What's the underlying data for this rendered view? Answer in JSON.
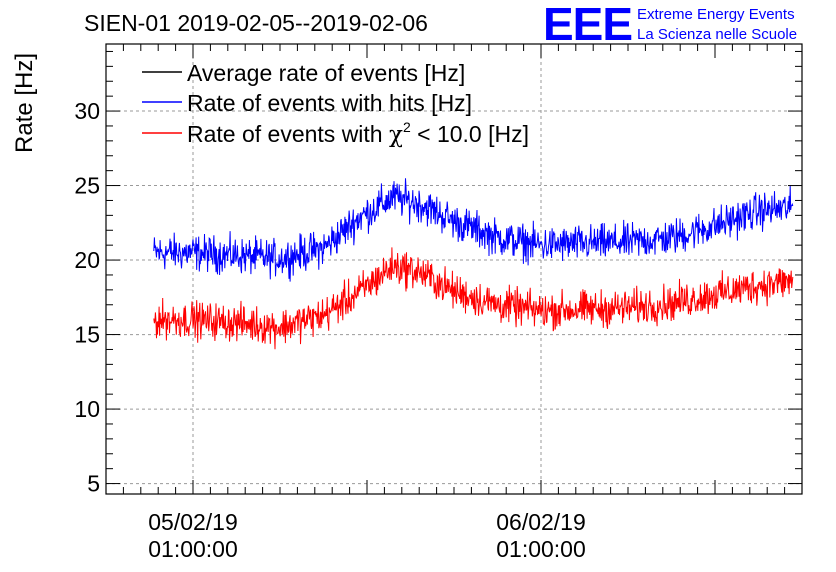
{
  "chart_data": {
    "type": "line",
    "title": "SIEN-01 2019-02-05--2019-02-06",
    "ylabel": "Rate [Hz]",
    "xlabel": "",
    "ylim": [
      4.3,
      34.5
    ],
    "yticks": [
      5,
      10,
      15,
      20,
      25,
      30
    ],
    "yticks_labels": [
      "5",
      "10",
      "15",
      "20",
      "25",
      "30"
    ],
    "xlim_hours": [
      -10.0,
      70.0
    ],
    "xticks_hours": [
      0,
      40
    ],
    "xtick_labels": [
      {
        "date": "05/02/19",
        "time": "01:00:00"
      },
      {
        "date": "06/02/19",
        "time": "01:00:00"
      }
    ],
    "grid": true,
    "legend_placement": "top-left",
    "noise_amplitude": 1.0,
    "series": [
      {
        "name": "Average rate of events [Hz]",
        "color": "#000000",
        "points": []
      },
      {
        "name": "Rate of events with hits [Hz]",
        "color": "#0000ff",
        "points": [
          [
            -4.5,
            20.5
          ],
          [
            0,
            20.5
          ],
          [
            5,
            20.3
          ],
          [
            10,
            20.1
          ],
          [
            15,
            20.8
          ],
          [
            19,
            22.8
          ],
          [
            23,
            24.2
          ],
          [
            26,
            23.8
          ],
          [
            30,
            22.6
          ],
          [
            35,
            21.5
          ],
          [
            40,
            21.0
          ],
          [
            45,
            21.1
          ],
          [
            50,
            21.2
          ],
          [
            55,
            21.5
          ],
          [
            60,
            22.3
          ],
          [
            65,
            23.3
          ],
          [
            69,
            23.5
          ]
        ]
      },
      {
        "name": "Rate of events with χ² < 10.0 [Hz]",
        "name_parts": {
          "prefix": "Rate of events with ",
          "symbol": "χ",
          "sup": "2",
          "suffix": " < 10.0 [Hz]"
        },
        "color": "#ff0000",
        "points": [
          [
            -4.5,
            16.0
          ],
          [
            0,
            16.0
          ],
          [
            5,
            15.8
          ],
          [
            10,
            15.5
          ],
          [
            15,
            16.3
          ],
          [
            19,
            17.8
          ],
          [
            23,
            19.6
          ],
          [
            26,
            19.2
          ],
          [
            30,
            17.9
          ],
          [
            35,
            17.0
          ],
          [
            40,
            16.6
          ],
          [
            45,
            16.7
          ],
          [
            50,
            16.8
          ],
          [
            55,
            17.1
          ],
          [
            60,
            17.7
          ],
          [
            65,
            18.3
          ],
          [
            69,
            18.6
          ]
        ]
      }
    ]
  },
  "logo": {
    "text": "EEE",
    "line1": "Extreme Energy Events",
    "line2": "La Scienza nelle Scuole",
    "color": "#0000ff"
  }
}
